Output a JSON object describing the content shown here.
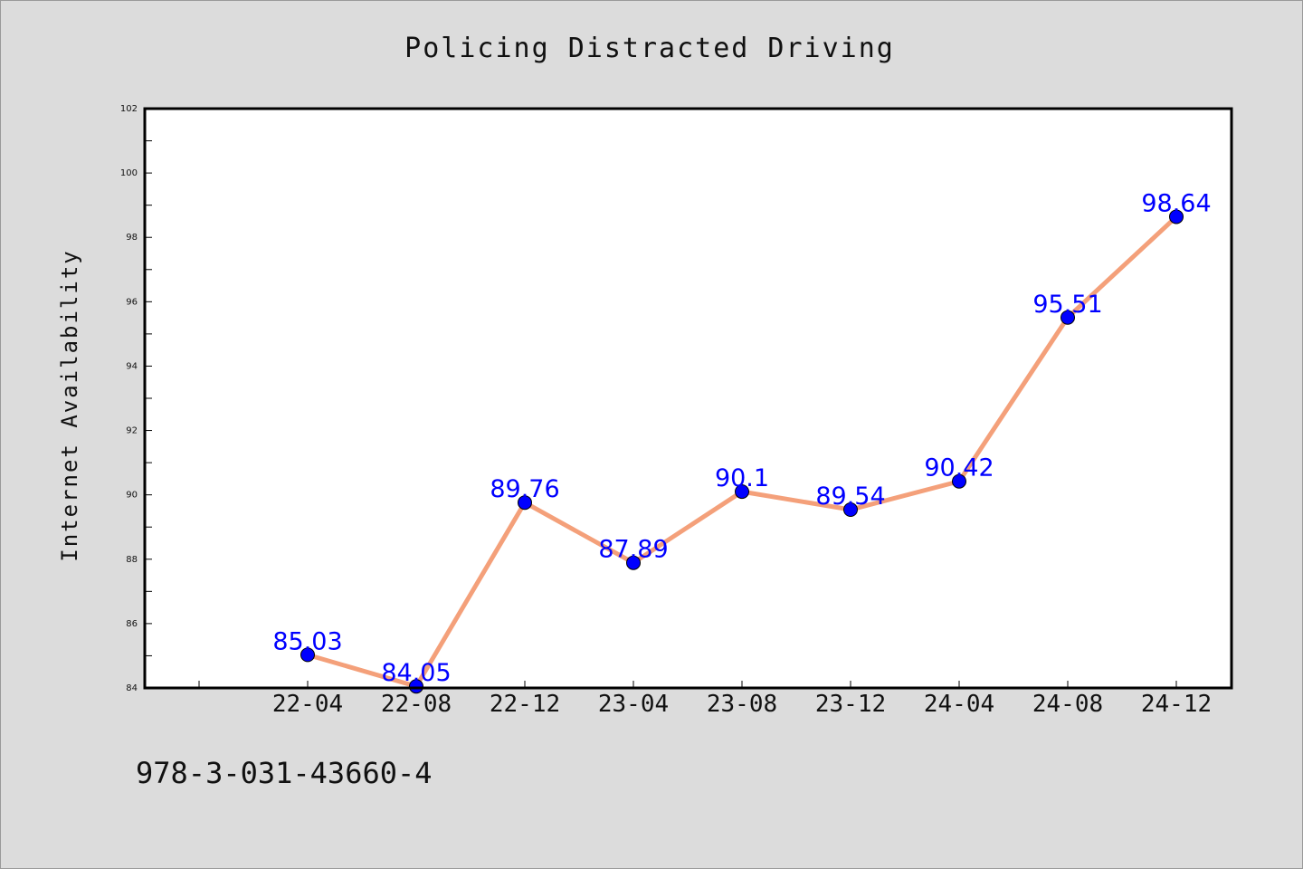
{
  "chart_data": {
    "type": "line",
    "title": "Policing Distracted Driving",
    "xlabel": "",
    "ylabel": "Internet Availability",
    "categories": [
      "22-04",
      "22-08",
      "22-12",
      "23-04",
      "23-08",
      "23-12",
      "24-04",
      "24-08",
      "24-12"
    ],
    "values": [
      85.03,
      84.05,
      89.76,
      87.89,
      90.1,
      89.54,
      90.42,
      95.51,
      98.64
    ],
    "data_labels": [
      "85.03",
      "84.05",
      "89.76",
      "87.89",
      "90.1",
      "89.54",
      "90.42",
      "95.51",
      "98.64"
    ],
    "ylim": [
      84,
      102
    ],
    "yticks": [
      "84",
      "86",
      "88",
      "90",
      "92",
      "94",
      "96",
      "98",
      "100",
      "102"
    ],
    "grid": false,
    "line_color": "#f4a07a",
    "marker_color": "#0000ff",
    "label_color": "#0000ff"
  },
  "footer_text": "978-3-031-43660-4"
}
